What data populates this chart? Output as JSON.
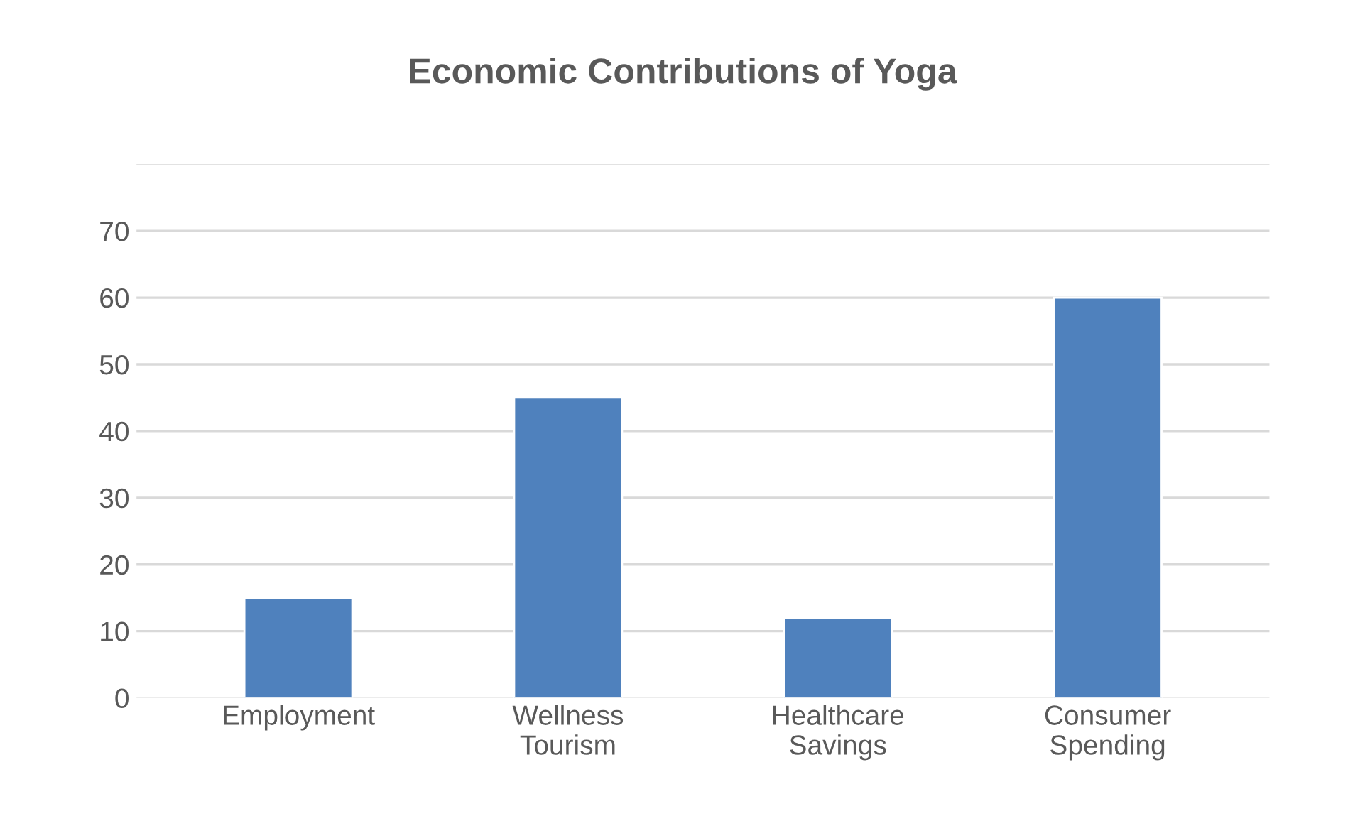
{
  "chart_data": {
    "type": "bar",
    "title": "Economic Contributions of Yoga",
    "categories": [
      "Employment",
      "Wellness\nTourism",
      "Healthcare\nSavings",
      "Consumer\nSpending"
    ],
    "values": [
      15,
      45,
      12,
      60
    ],
    "color": "#4f81bd",
    "ylim": [
      0,
      80
    ],
    "yticks": [
      0,
      10,
      20,
      30,
      40,
      50,
      60,
      70,
      {
        "value": 80,
        "label": null
      }
    ],
    "grid": "y"
  }
}
